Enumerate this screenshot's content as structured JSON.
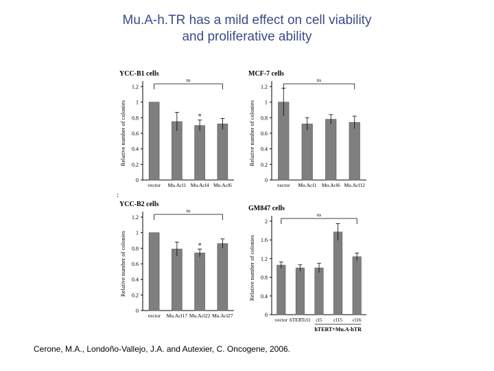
{
  "title": {
    "line1": "Mu.A-h.TR has a mild effect on cell viability",
    "line2": "and proliferative ability"
  },
  "citation": "Cerone, M.A., Londoño-Vallejo, J.A. and Autexier, C. Oncogene, 2006.",
  "panel_mark": ":",
  "colors": {
    "bar": "#7f7f7f",
    "axis": "#000000",
    "text": "#000000",
    "title": "#3b4a87"
  },
  "chart_data": [
    {
      "type": "bar",
      "title": "YCC-B1 cells",
      "ylabel": "Relative number of colonies",
      "ylim": [
        0,
        1.2
      ],
      "yticks": [
        0,
        0.2,
        0.4,
        0.6,
        0.8,
        1,
        1.2
      ],
      "ytick_labels": [
        "0",
        "0.2",
        "0.4",
        "0.6",
        "0.8",
        "1",
        "1.2"
      ],
      "categories": [
        "vector",
        "Mu.Acl1",
        "Mu.Acl4",
        "Mu.Acl6"
      ],
      "values": [
        1.0,
        0.75,
        0.7,
        0.72
      ],
      "errors": [
        0,
        0.12,
        0.07,
        0.07
      ],
      "bar_annotations": [
        "",
        "",
        "*",
        ""
      ],
      "significance": "ns",
      "group_label": ""
    },
    {
      "type": "bar",
      "title": "MCF-7 cells",
      "ylabel": "Relative number of colonies",
      "ylim": [
        0,
        1.2
      ],
      "yticks": [
        0,
        0.2,
        0.4,
        0.6,
        0.8,
        1,
        1.2
      ],
      "ytick_labels": [
        "0",
        "0.2",
        "0.4",
        "0.6",
        "0.8",
        "1",
        "1.2"
      ],
      "categories": [
        "vector",
        "Mu.Acl1",
        "Mu.Acl6",
        "Mu.Acl12"
      ],
      "values": [
        1.0,
        0.72,
        0.78,
        0.74
      ],
      "errors": [
        0.18,
        0.08,
        0.06,
        0.08
      ],
      "bar_annotations": [
        "",
        "",
        "",
        ""
      ],
      "significance": "ns",
      "group_label": ""
    },
    {
      "type": "bar",
      "title": "YCC-B2 cells",
      "ylabel": "Relative number of colonies",
      "ylim": [
        0,
        1.2
      ],
      "yticks": [
        0,
        0.2,
        0.4,
        0.6,
        0.8,
        1,
        1.2
      ],
      "ytick_labels": [
        "0",
        "0.2",
        "0.4",
        "0.6",
        "0.8",
        "1",
        "1.2"
      ],
      "categories": [
        "vector",
        "Mu.Acl17",
        "Mu.Acl22",
        "Mu.Acl27"
      ],
      "values": [
        1.0,
        0.79,
        0.74,
        0.86
      ],
      "errors": [
        0,
        0.09,
        0.05,
        0.06
      ],
      "bar_annotations": [
        "",
        "",
        "*",
        ""
      ],
      "significance": "ns",
      "group_label": ""
    },
    {
      "type": "bar",
      "title": "GM847 cells",
      "ylabel": "Relative number of colonies",
      "ylim": [
        0,
        2.0
      ],
      "yticks": [
        0,
        0.4,
        0.8,
        1.2,
        1.6,
        2
      ],
      "ytick_labels": [
        "0",
        "0.4",
        "0.8",
        "1.2",
        "1.6",
        "2"
      ],
      "categories": [
        "vector",
        "hTERTcl1",
        "cl5",
        "cl15",
        "cl16"
      ],
      "values": [
        1.06,
        1.0,
        1.0,
        1.77,
        1.24
      ],
      "errors": [
        0.07,
        0.07,
        0.1,
        0.18,
        0.08
      ],
      "bar_annotations": [
        "",
        "",
        "",
        "",
        ""
      ],
      "significance": "ns",
      "group_label": "hTERT+Mu.A-hTR"
    }
  ]
}
